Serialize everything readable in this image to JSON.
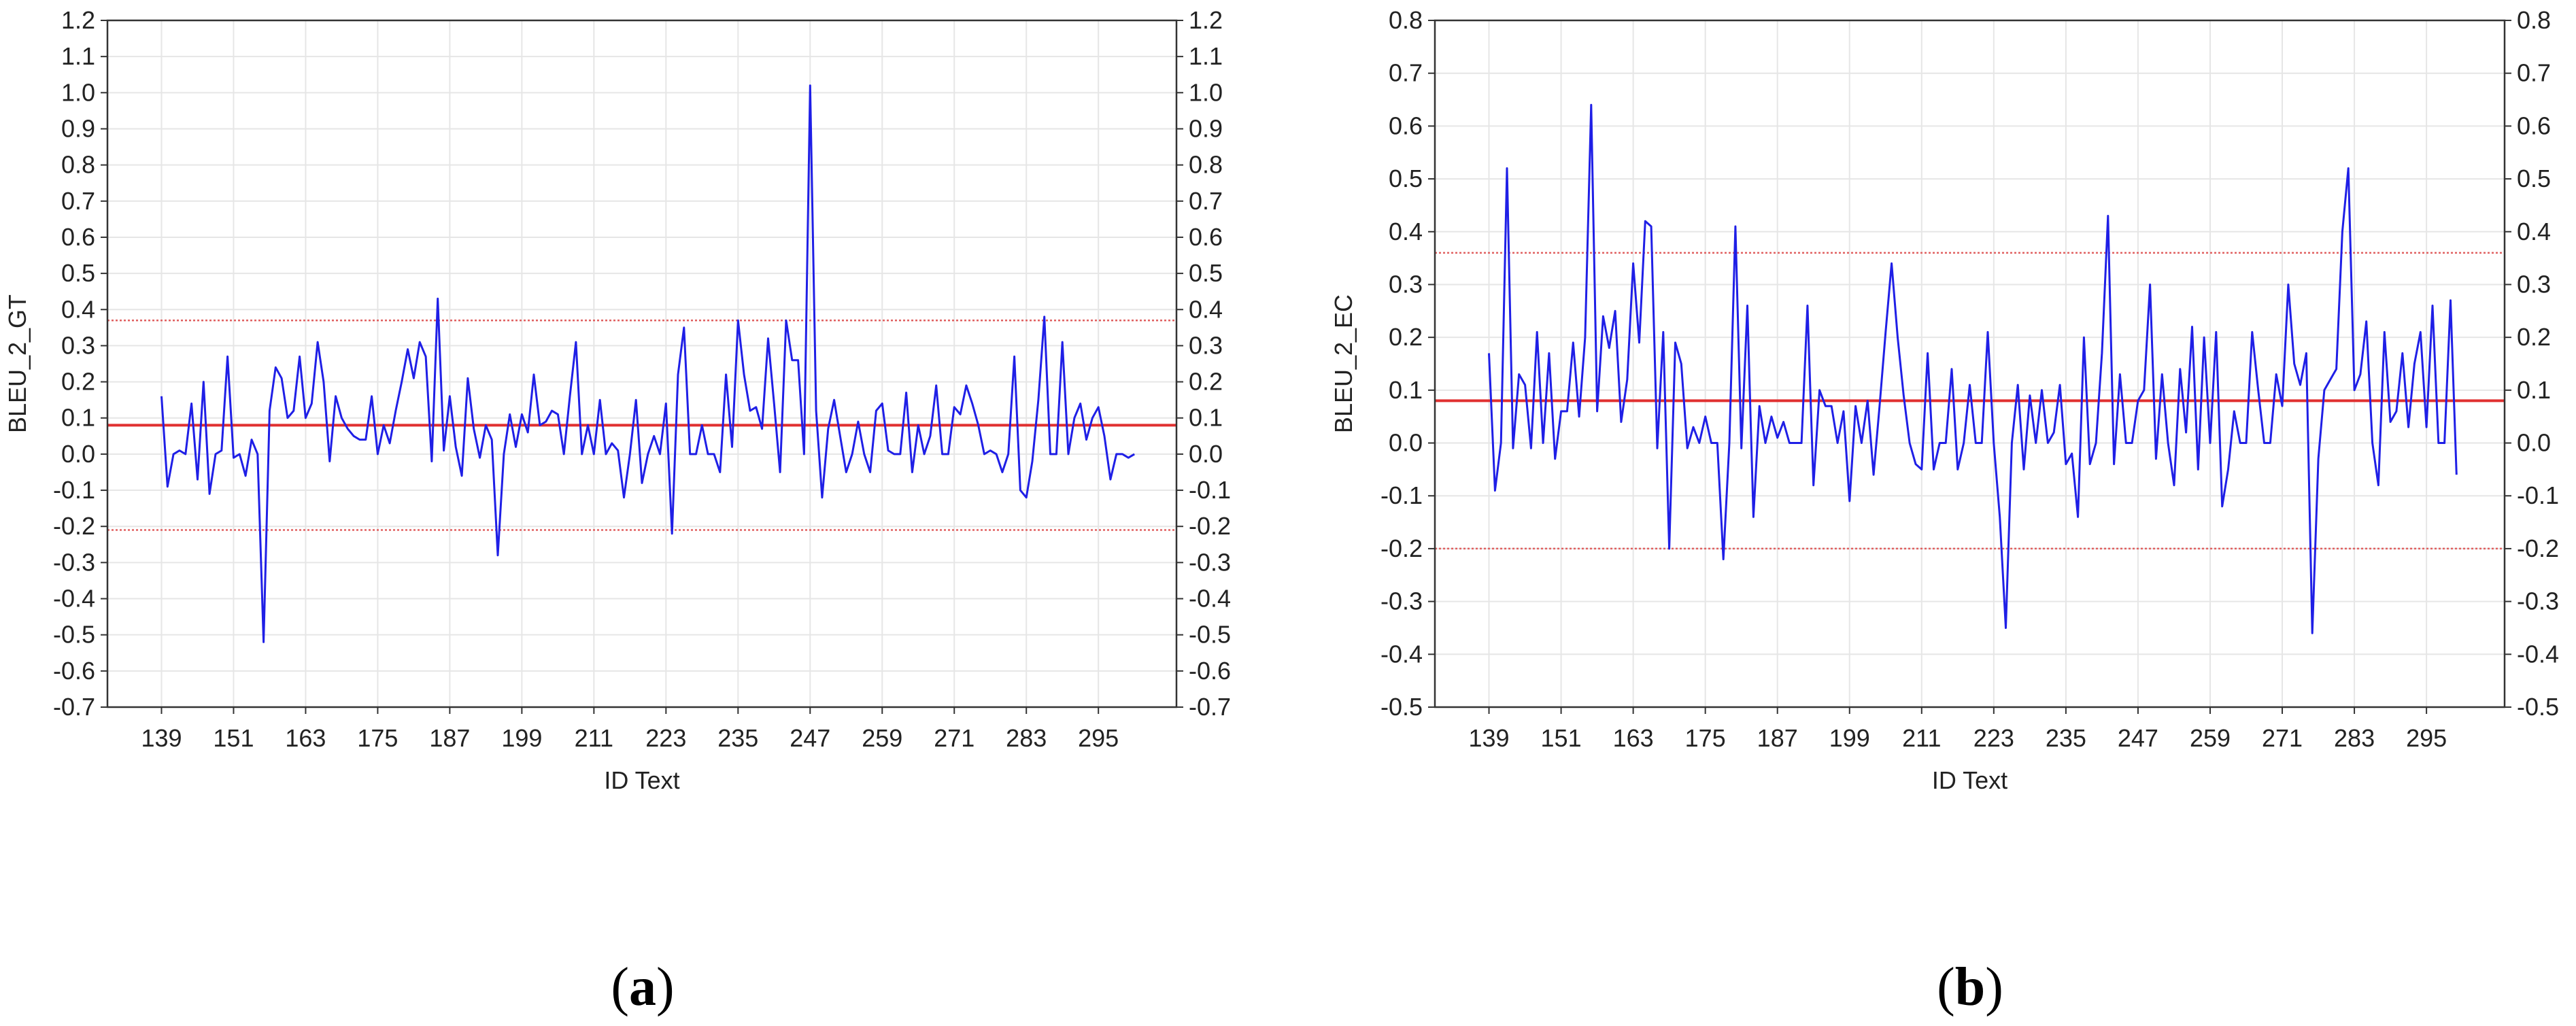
{
  "colors": {
    "series": "#1f1fe6",
    "mean": "#e03030",
    "limit": "#e06060",
    "grid": "#e6e6e6",
    "axis": "#333333"
  },
  "chart_data": [
    {
      "type": "line",
      "caption": "a",
      "xlabel": "ID Text",
      "ylabel": "BLEU_2_GT",
      "grid": true,
      "right_axis": true,
      "xlim": [
        130,
        308
      ],
      "ylim": [
        -0.7,
        1.2
      ],
      "ytick_step": 0.1,
      "x_ticks": [
        139,
        151,
        163,
        175,
        187,
        199,
        211,
        223,
        235,
        247,
        259,
        271,
        283,
        295
      ],
      "mean_line": 0.08,
      "limit_lines": [
        0.37,
        -0.21
      ],
      "series": [
        {
          "x_start": 139,
          "values": [
            0.16,
            -0.09,
            0.0,
            0.01,
            0.0,
            0.14,
            -0.07,
            0.2,
            -0.11,
            0.0,
            0.01,
            0.27,
            -0.01,
            0.0,
            -0.06,
            0.04,
            0.0,
            -0.52,
            0.12,
            0.24,
            0.21,
            0.1,
            0.12,
            0.27,
            0.1,
            0.14,
            0.31,
            0.2,
            -0.02,
            0.16,
            0.1,
            0.07,
            0.05,
            0.04,
            0.04,
            0.16,
            0.0,
            0.08,
            0.03,
            0.12,
            0.2,
            0.29,
            0.21,
            0.31,
            0.27,
            -0.02,
            0.43,
            0.01,
            0.16,
            0.02,
            -0.06,
            0.21,
            0.07,
            -0.01,
            0.08,
            0.04,
            -0.28,
            0.0,
            0.11,
            0.02,
            0.11,
            0.06,
            0.22,
            0.08,
            0.09,
            0.12,
            0.11,
            0.0,
            0.16,
            0.31,
            0.0,
            0.08,
            0.0,
            0.15,
            0.0,
            0.03,
            0.01,
            -0.12,
            0.0,
            0.15,
            -0.08,
            0.0,
            0.05,
            0.0,
            0.14,
            -0.22,
            0.22,
            0.35,
            0.0,
            0.0,
            0.08,
            0.0,
            0.0,
            -0.05,
            0.22,
            0.02,
            0.37,
            0.22,
            0.12,
            0.13,
            0.07,
            0.32,
            0.14,
            -0.05,
            0.37,
            0.26,
            0.26,
            0.0,
            1.02,
            0.12,
            -0.12,
            0.07,
            0.15,
            0.05,
            -0.05,
            0.0,
            0.09,
            0.0,
            -0.05,
            0.12,
            0.14,
            0.01,
            0.0,
            0.0,
            0.17,
            -0.05,
            0.08,
            0.0,
            0.05,
            0.19,
            0.0,
            0.0,
            0.13,
            0.11,
            0.19,
            0.14,
            0.08,
            0.0,
            0.01,
            0.0,
            -0.05,
            0.0,
            0.27,
            -0.1,
            -0.12,
            -0.02,
            0.15,
            0.38,
            0.0,
            0.0,
            0.31,
            0.0,
            0.1,
            0.14,
            0.04,
            0.1,
            0.13,
            0.05,
            -0.07,
            0.0,
            0.0,
            -0.01,
            0.0
          ]
        }
      ]
    },
    {
      "type": "line",
      "caption": "b",
      "xlabel": "ID Text",
      "ylabel": "BLEU_2_EC",
      "grid": true,
      "right_axis": true,
      "xlim": [
        130,
        308
      ],
      "ylim": [
        -0.5,
        0.8
      ],
      "ytick_step": 0.1,
      "x_ticks": [
        139,
        151,
        163,
        175,
        187,
        199,
        211,
        223,
        235,
        247,
        259,
        271,
        283,
        295
      ],
      "mean_line": 0.08,
      "limit_lines": [
        0.36,
        -0.2
      ],
      "series": [
        {
          "x_start": 139,
          "values": [
            0.17,
            -0.09,
            0.0,
            0.52,
            -0.01,
            0.13,
            0.11,
            -0.01,
            0.21,
            0.0,
            0.17,
            -0.03,
            0.06,
            0.06,
            0.19,
            0.05,
            0.2,
            0.64,
            0.06,
            0.24,
            0.18,
            0.25,
            0.04,
            0.12,
            0.34,
            0.19,
            0.42,
            0.41,
            -0.01,
            0.21,
            -0.2,
            0.19,
            0.15,
            -0.01,
            0.03,
            0.0,
            0.05,
            0.0,
            0.0,
            -0.22,
            0.0,
            0.41,
            -0.01,
            0.26,
            -0.14,
            0.07,
            0.0,
            0.05,
            0.01,
            0.04,
            0.0,
            0.0,
            0.0,
            0.26,
            -0.08,
            0.1,
            0.07,
            0.07,
            0.0,
            0.06,
            -0.11,
            0.07,
            0.0,
            0.08,
            -0.06,
            0.07,
            0.21,
            0.34,
            0.2,
            0.09,
            0.0,
            -0.04,
            -0.05,
            0.17,
            -0.05,
            0.0,
            0.0,
            0.14,
            -0.05,
            0.0,
            0.11,
            0.0,
            0.0,
            0.21,
            0.0,
            -0.14,
            -0.35,
            0.0,
            0.11,
            -0.05,
            0.09,
            0.0,
            0.1,
            0.0,
            0.02,
            0.11,
            -0.04,
            -0.02,
            -0.14,
            0.2,
            -0.04,
            0.0,
            0.17,
            0.43,
            -0.04,
            0.13,
            0.0,
            0.0,
            0.08,
            0.1,
            0.3,
            -0.03,
            0.13,
            0.0,
            -0.08,
            0.14,
            0.02,
            0.22,
            -0.05,
            0.2,
            0.0,
            0.21,
            -0.12,
            -0.05,
            0.06,
            0.0,
            0.0,
            0.21,
            0.1,
            0.0,
            0.0,
            0.13,
            0.07,
            0.3,
            0.15,
            0.11,
            0.17,
            -0.36,
            -0.03,
            0.1,
            0.12,
            0.14,
            0.4,
            0.52,
            0.1,
            0.13,
            0.23,
            0.0,
            -0.08,
            0.21,
            0.04,
            0.06,
            0.17,
            0.03,
            0.15,
            0.21,
            0.03,
            0.26,
            0.0,
            0.0,
            0.27,
            -0.06
          ]
        }
      ]
    }
  ]
}
